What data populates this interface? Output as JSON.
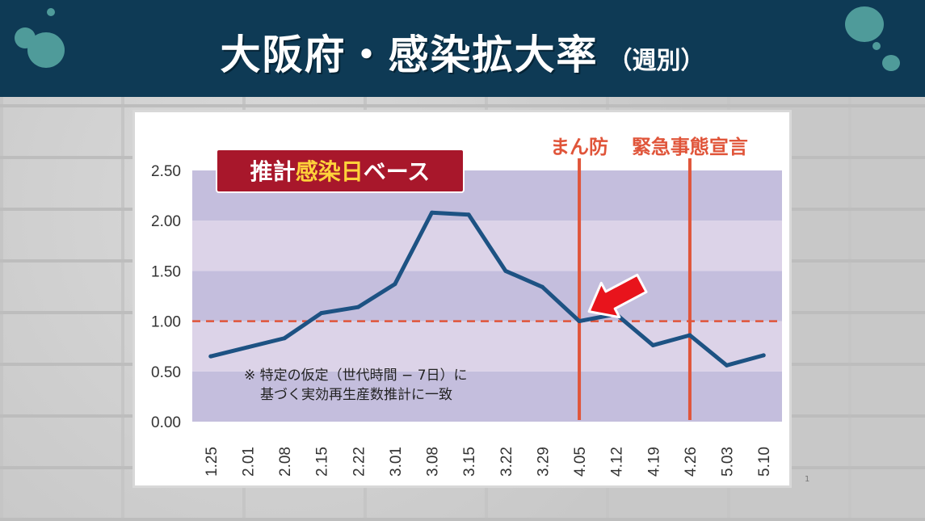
{
  "title": {
    "main": "大阪府・感染拡大率",
    "sub": "（週別）"
  },
  "badge": {
    "prefix": "推計",
    "highlight": "感染日",
    "suffix": "ベース"
  },
  "note": {
    "line1": "※ 特定の仮定（世代時間 − 7日）に",
    "line2": "基づく実効再生産数推計に一致"
  },
  "colors": {
    "banner": "#0e3a55",
    "line": "#1d5283",
    "event_line": "#e0553a",
    "threshold": "#e0553a",
    "badge_bg": "#a8172b",
    "badge_highlight": "#ffd23a",
    "band_dark": "#c4bedd",
    "band_light": "#dcd3e8"
  },
  "page_number": "1",
  "chart_data": {
    "type": "line",
    "categories": [
      "1.25",
      "2.01",
      "2.08",
      "2.15",
      "2.22",
      "3.01",
      "3.08",
      "3.15",
      "3.22",
      "3.29",
      "4.05",
      "4.12",
      "4.19",
      "4.26",
      "5.03",
      "5.10"
    ],
    "values": [
      0.65,
      0.74,
      0.83,
      1.08,
      1.14,
      1.37,
      2.08,
      2.06,
      1.5,
      1.34,
      1.0,
      1.07,
      0.76,
      0.86,
      0.56,
      0.66
    ],
    "ylim": [
      0,
      2.5
    ],
    "yticks": [
      "0.00",
      "0.50",
      "1.00",
      "1.50",
      "2.00",
      "2.50"
    ],
    "threshold": 1.0,
    "events": [
      {
        "label": "まん防",
        "x": "4.05"
      },
      {
        "label": "緊急事態宣言",
        "x": "4.26"
      }
    ],
    "arrow_at": "4.05",
    "grid": "horizontal bands"
  }
}
